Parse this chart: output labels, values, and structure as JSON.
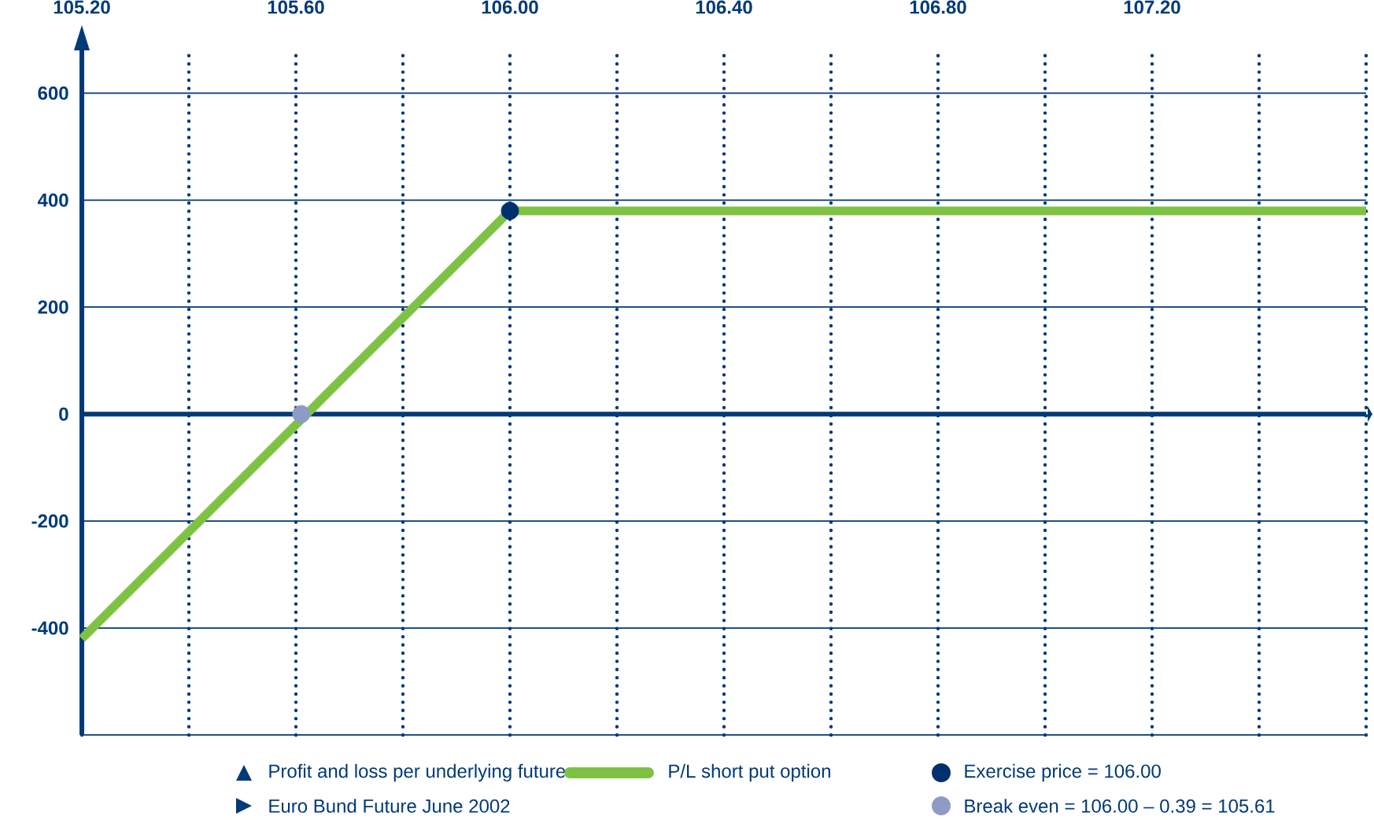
{
  "chart_data": {
    "type": "line",
    "annotations": [
      "Profit and loss per underlying future",
      "Euro Bund Future June 2002"
    ],
    "xlim": [
      105.2,
      107.6
    ],
    "ylim": [
      -600,
      680
    ],
    "ref_lines": [
      {
        "axis": "y",
        "value": 0,
        "color": "#003a78"
      }
    ],
    "xticks": [
      {
        "value": 105.2,
        "label": "105.20"
      },
      {
        "value": 105.4,
        "label": null
      },
      {
        "value": 105.6,
        "label": "105.60"
      },
      {
        "value": 105.8,
        "label": null
      },
      {
        "value": 106.0,
        "label": "106.00"
      },
      {
        "value": 106.2,
        "label": null
      },
      {
        "value": 106.4,
        "label": "106.40"
      },
      {
        "value": 106.6,
        "label": null
      },
      {
        "value": 106.8,
        "label": "106.80"
      },
      {
        "value": 107.0,
        "label": null
      },
      {
        "value": 107.2,
        "label": "107.20"
      },
      {
        "value": 107.4,
        "label": null
      },
      {
        "value": 107.6,
        "label": null
      }
    ],
    "yticks": [
      {
        "value": -600,
        "label": null
      },
      -400,
      -200,
      0,
      200,
      400,
      600
    ],
    "grid": true,
    "legend": "bottom",
    "series": [
      {
        "name": "P/L short put option",
        "color": "#7dc242",
        "x": [
          105.2,
          106.0,
          107.6
        ],
        "values": [
          -420,
          380,
          380
        ]
      },
      {
        "name": "Exercise price = 106.00",
        "type": "scatter",
        "color": "#00306e",
        "x": [
          106.0
        ],
        "values": [
          380
        ]
      },
      {
        "name": "Break even = 106.00 – 0.39 = 105.61",
        "type": "scatter",
        "color": "#8e9bc6",
        "x": [
          105.61
        ],
        "values": [
          0
        ]
      }
    ]
  }
}
